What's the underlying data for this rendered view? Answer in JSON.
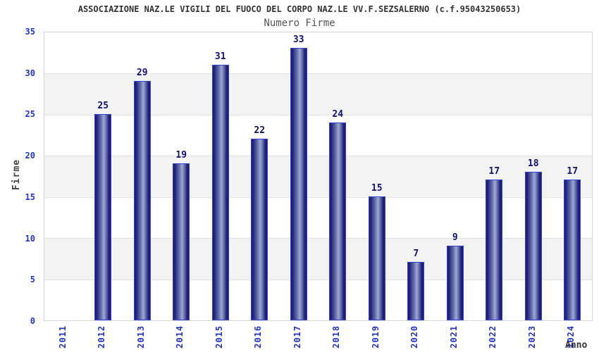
{
  "chart_data": {
    "type": "bar",
    "title": "ASSOCIAZIONE NAZ.LE VIGILI DEL FUOCO DEL CORPO NAZ.LE VV.F.SEZSALERNO (c.f.95043250653)",
    "subtitle": "Numero Firme",
    "xlabel": "Anno",
    "ylabel": "Firme",
    "categories": [
      "2011",
      "2012",
      "2013",
      "2014",
      "2015",
      "2016",
      "2017",
      "2018",
      "2019",
      "2020",
      "2021",
      "2022",
      "2023",
      "2024"
    ],
    "values": [
      0,
      25,
      29,
      19,
      31,
      22,
      33,
      24,
      15,
      7,
      9,
      17,
      18,
      17
    ],
    "ylim": [
      0,
      35
    ],
    "ytick_step": 5,
    "yticks": [
      0,
      5,
      10,
      15,
      20,
      25,
      30,
      35
    ],
    "grid": true,
    "legend": "none",
    "alternating_bands": true,
    "bar_value_labels_visible": true
  },
  "colors": {
    "axis_label_blue": "#2233cc",
    "value_label_navy": "#0f0f78",
    "title_gray": "#333333",
    "subtitle_gray": "#555555",
    "band_gray": "#f3f3f3",
    "gridline": "#e2e2e2",
    "plot_border": "#d6d6d6",
    "bar_border": "#3344dd",
    "bar_edge_dark": "#191970",
    "bar_mid": "#6b74ae",
    "bar_highlight": "#9ea8d2"
  }
}
